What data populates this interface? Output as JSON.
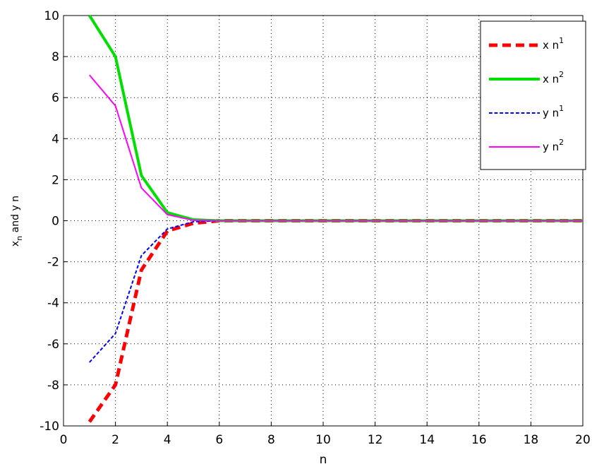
{
  "chart_data": {
    "type": "line",
    "xlabel": "n",
    "ylabel": {
      "main": "x",
      "sub": "n",
      "rest": " and y n"
    },
    "x": [
      1,
      2,
      3,
      4,
      5,
      6,
      7,
      8,
      9,
      10,
      11,
      12,
      13,
      14,
      15,
      16,
      17,
      18,
      19,
      20
    ],
    "series": [
      {
        "name": "x n",
        "superscript": "1",
        "color": "#ff0000",
        "dash": true,
        "width": 5,
        "values": [
          -9.8,
          -8,
          -2.4,
          -0.5,
          -0.12,
          0,
          0,
          0,
          0,
          0,
          0,
          0,
          0,
          0,
          0,
          0,
          0,
          0,
          0,
          0
        ]
      },
      {
        "name": "x n",
        "superscript": "2",
        "color": "#00dd00",
        "dash": false,
        "width": 4,
        "values": [
          10,
          8,
          2.2,
          0.4,
          0.05,
          0,
          0,
          0,
          0,
          0,
          0,
          0,
          0,
          0,
          0,
          0,
          0,
          0,
          0,
          0
        ]
      },
      {
        "name": "y n",
        "superscript": "1",
        "color": "#0000ff",
        "dash": true,
        "width": 2,
        "values": [
          -6.9,
          -5.5,
          -1.7,
          -0.4,
          -0.05,
          0,
          0,
          0,
          0,
          0,
          0,
          0,
          0,
          0,
          0,
          0,
          0,
          0,
          0,
          0
        ]
      },
      {
        "name": "y n",
        "superscript": "2",
        "color": "#ff00ff",
        "dash": false,
        "width": 2,
        "values": [
          7.1,
          5.6,
          1.6,
          0.3,
          0.02,
          0,
          0,
          0,
          0,
          0,
          0,
          0,
          0,
          0,
          0,
          0,
          0,
          0,
          0,
          0
        ]
      }
    ],
    "xlim": [
      0,
      20
    ],
    "xticks": [
      0,
      2,
      4,
      6,
      8,
      10,
      12,
      14,
      16,
      18,
      20
    ],
    "ylim": [
      -10,
      10
    ],
    "yticks": [
      -10,
      -8,
      -6,
      -4,
      -2,
      0,
      2,
      4,
      6,
      8,
      10
    ],
    "grid": true,
    "legend": "upper right"
  }
}
